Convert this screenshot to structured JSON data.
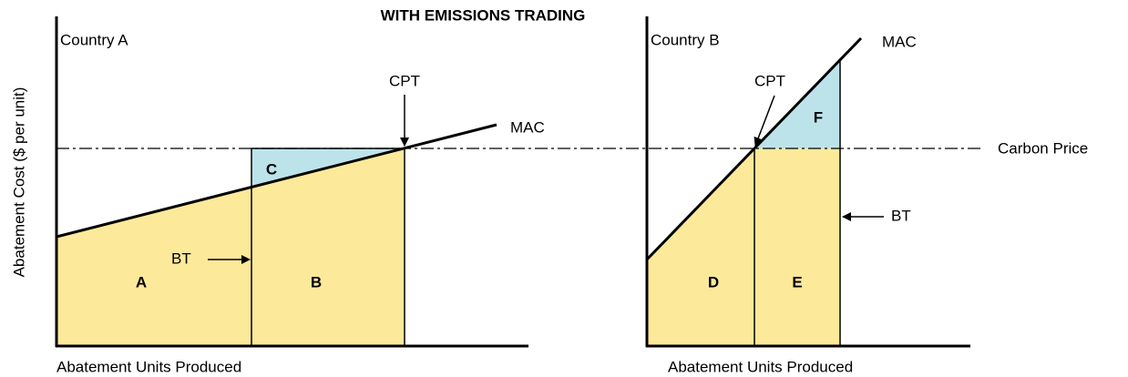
{
  "title": "WITH EMISSIONS TRADING",
  "y_axis_label": "Abatement Cost ($ per unit)",
  "panels": [
    {
      "name": "Country A",
      "x_axis_label": "Abatement Units Produced",
      "curve_label": "MAC",
      "price_point_label": "CPT",
      "baseline_label": "BT",
      "regions": [
        "A",
        "B",
        "C"
      ]
    },
    {
      "name": "Country B",
      "x_axis_label": "Abatement Units Produced",
      "curve_label": "MAC",
      "price_point_label": "CPT",
      "baseline_label": "BT",
      "regions": [
        "D",
        "E",
        "F"
      ]
    }
  ],
  "price_line_label": "Carbon Price"
}
